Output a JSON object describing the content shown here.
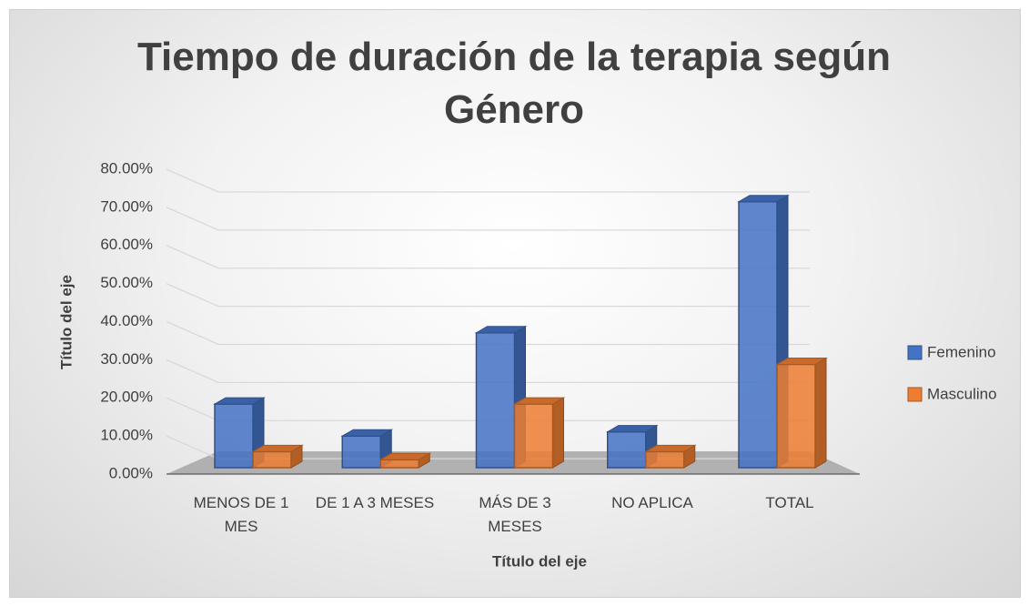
{
  "chart_data": {
    "type": "bar3d",
    "title": "Tiempo de duración de la terapia según Género",
    "x_label": "Título del eje",
    "y_label": "Título del eje",
    "categories": [
      "MENOS DE 1 MES",
      "DE 1 A 3 MESES",
      "MÁS DE 3 MESES",
      "NO APLICA",
      "TOTAL"
    ],
    "series": [
      {
        "name": "Femenino",
        "color": "#4472c4",
        "values": [
          16.7,
          8.3,
          35.4,
          9.4,
          69.8
        ]
      },
      {
        "name": "Masculino",
        "color": "#ed7d31",
        "values": [
          4.2,
          2.1,
          16.7,
          4.2,
          27.1
        ]
      }
    ],
    "ylim": [
      0,
      80
    ],
    "yticks": [
      {
        "value": 0,
        "label": "0.00%"
      },
      {
        "value": 10,
        "label": "10.00%"
      },
      {
        "value": 20,
        "label": "20.00%"
      },
      {
        "value": 30,
        "label": "30.00%"
      },
      {
        "value": 40,
        "label": "40.00%"
      },
      {
        "value": 50,
        "label": "50.00%"
      },
      {
        "value": 60,
        "label": "60.00%"
      },
      {
        "value": 70,
        "label": "70.00%"
      },
      {
        "value": 80,
        "label": "80.00%"
      }
    ],
    "grid": true,
    "legend": "right"
  }
}
